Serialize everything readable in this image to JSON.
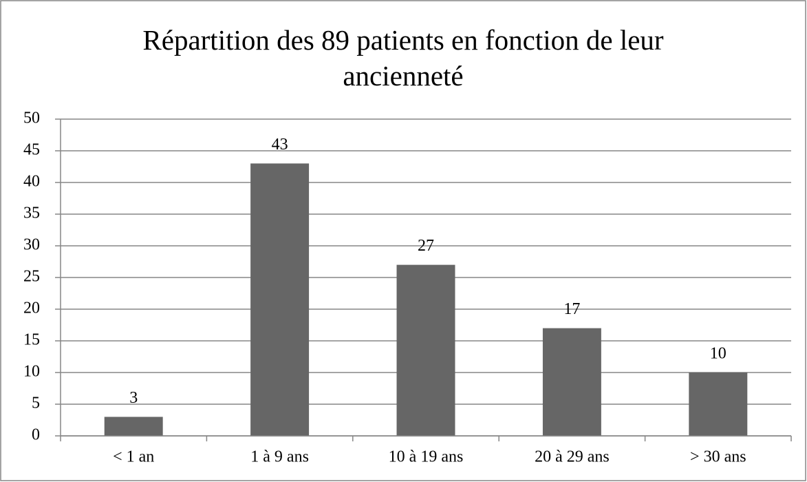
{
  "chart_data": {
    "type": "bar",
    "title": "Répartition des 89 patients en fonction de leur ancienneté",
    "categories": [
      "< 1 an",
      "1 à 9 ans",
      "10 à 19 ans",
      "20 à 29 ans",
      "> 30 ans"
    ],
    "values": [
      3,
      43,
      27,
      17,
      10
    ],
    "color": "#666666",
    "ylim": [
      0,
      50
    ],
    "yticks": [
      0,
      5,
      10,
      15,
      20,
      25,
      30,
      35,
      40,
      45,
      50
    ],
    "grid": true,
    "data_labels": true
  }
}
